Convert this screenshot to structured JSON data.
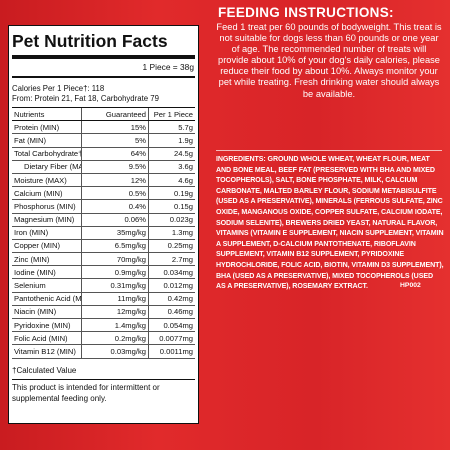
{
  "nutrition": {
    "title": "Pet Nutrition Facts",
    "serving": "1 Piece = 38g",
    "calories_line1": "Calories Per 1 Piece†: 118",
    "calories_line2": "From: Protein 21, Fat 18, Carbohydrate 79",
    "headers": [
      "Nutrients",
      "Guaranteed",
      "Per 1 Piece"
    ],
    "rows": [
      {
        "name": "Protein (MIN)",
        "guaranteed": "15%",
        "per_piece": "5.7g",
        "indent": false
      },
      {
        "name": "Fat (MIN)",
        "guaranteed": "5%",
        "per_piece": "1.9g",
        "indent": false
      },
      {
        "name": "Total Carbohydrate† (MAX)",
        "guaranteed": "64%",
        "per_piece": "24.5g",
        "indent": false
      },
      {
        "name": "Dietary Fiber (MAX)",
        "guaranteed": "9.5%",
        "per_piece": "3.6g",
        "indent": true
      },
      {
        "name": "Moisture (MAX)",
        "guaranteed": "12%",
        "per_piece": "4.6g",
        "indent": false
      },
      {
        "name": "Calcium (MIN)",
        "guaranteed": "0.5%",
        "per_piece": "0.19g",
        "indent": false
      },
      {
        "name": "Phosphorus (MIN)",
        "guaranteed": "0.4%",
        "per_piece": "0.15g",
        "indent": false
      },
      {
        "name": "Magnesium (MIN)",
        "guaranteed": "0.06%",
        "per_piece": "0.023g",
        "indent": false
      },
      {
        "name": "Iron (MIN)",
        "guaranteed": "35mg/kg",
        "per_piece": "1.3mg",
        "indent": false
      },
      {
        "name": "Copper (MIN)",
        "guaranteed": "6.5mg/kg",
        "per_piece": "0.25mg",
        "indent": false
      },
      {
        "name": "Zinc (MIN)",
        "guaranteed": "70mg/kg",
        "per_piece": "2.7mg",
        "indent": false
      },
      {
        "name": "Iodine (MIN)",
        "guaranteed": "0.9mg/kg",
        "per_piece": "0.034mg",
        "indent": false
      },
      {
        "name": "Selenium",
        "guaranteed": "0.31mg/kg",
        "per_piece": "0.012mg",
        "indent": false
      },
      {
        "name": "Pantothenic Acid (MIN)",
        "guaranteed": "11mg/kg",
        "per_piece": "0.42mg",
        "indent": false
      },
      {
        "name": "Niacin (MIN)",
        "guaranteed": "12mg/kg",
        "per_piece": "0.46mg",
        "indent": false
      },
      {
        "name": "Pyridoxine (MIN)",
        "guaranteed": "1.4mg/kg",
        "per_piece": "0.054mg",
        "indent": false
      },
      {
        "name": "Folic Acid (MIN)",
        "guaranteed": "0.2mg/kg",
        "per_piece": "0.0077mg",
        "indent": false
      },
      {
        "name": "Vitamin B12 (MIN)",
        "guaranteed": "0.03mg/kg",
        "per_piece": "0.0011mg",
        "indent": false
      }
    ],
    "footnote": "†Calculated Value",
    "disclaimer": "This product is intended for intermittent or supplemental feeding only."
  },
  "feeding": {
    "title": "FEEDING INSTRUCTIONS:",
    "text": "Feed 1 treat per 60 pounds of bodyweight. This treat is not suitable for dogs less than 60 pounds or one year of age. The recommended number of treats will provide about 10% of your dog's daily calories, please reduce their food by about 10%. Always monitor your pet while treating. Fresh drinking water should always be available."
  },
  "ingredients": {
    "label": "INGREDIENTS:",
    "text": "Ground whole wheat, wheat flour, meat and bone meal, beef fat (preserved with BHA and mixed tocopherols), salt, bone phosphate, milk, calcium carbonate, malted barley flour, sodium metabisulfite (used as a preservative), minerals (ferrous sulfate, zinc oxide, manganous oxide, copper sulfate, calcium iodate, sodium selenite), brewers dried yeast, natural flavor, vitamins (vitamin E supplement, niacin supplement, vitamin A supplement, d-calcium pantothenate, riboflavin supplement, vitamin B12 supplement, pyridoxine hydrochloride, folic acid, biotin, vitamin D3 supplement), BHA (used as a preservative), mixed tocopherols (used as a preservative), rosemary extract.",
    "code": "HP002"
  }
}
